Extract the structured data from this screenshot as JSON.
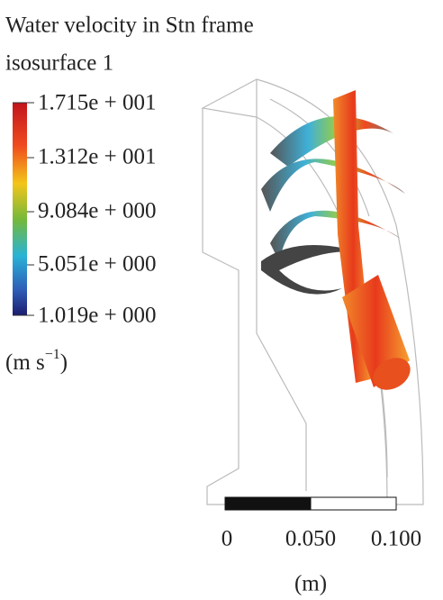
{
  "legend": {
    "title_line1": "Water velocity in Stn frame",
    "title_line2": "isosurface 1",
    "labels": [
      "1.715e + 001",
      "1.312e + 001",
      "9.084e + 000",
      "5.051e + 000",
      "1.019e + 000"
    ],
    "unit": {
      "base": "(m s",
      "exponent": "−1",
      "close": ")"
    }
  },
  "scale_bar": {
    "labels": [
      "0",
      "0.050",
      "0.100"
    ],
    "unit": "(m)"
  }
}
